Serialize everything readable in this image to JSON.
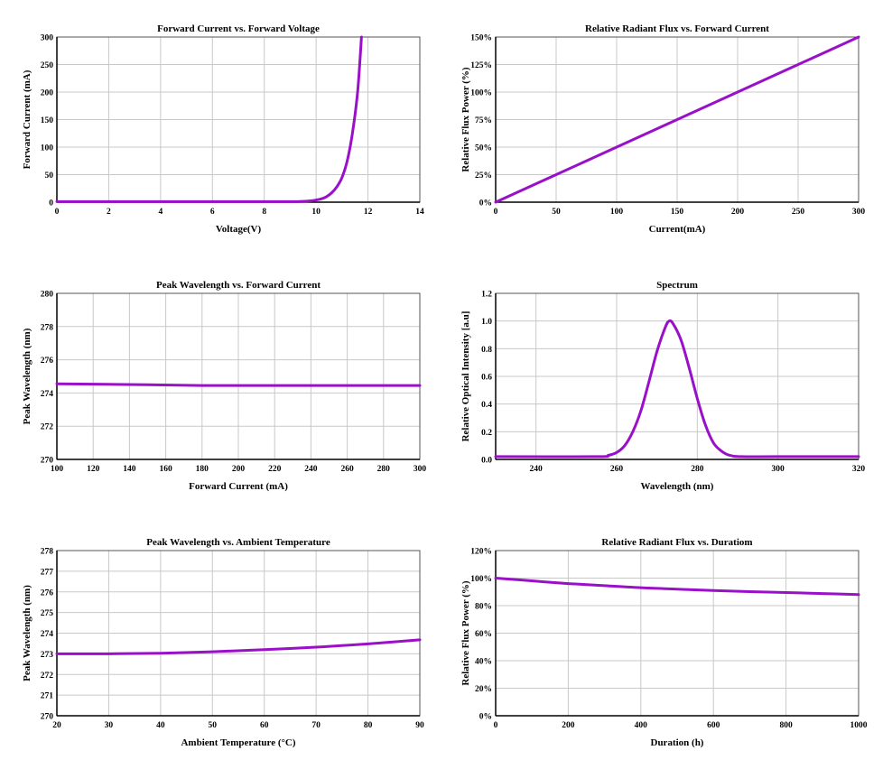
{
  "colors": {
    "series": "#9a10c8"
  },
  "chart_data": [
    {
      "type": "line",
      "title": "Forward Current vs. Forward Voltage",
      "xlabel": "Voltage(V)",
      "ylabel": "Forward Current (mA)",
      "xlim": [
        0,
        14
      ],
      "ylim": [
        0,
        300
      ],
      "xticks": [
        0,
        2,
        4,
        6,
        8,
        10,
        12,
        14
      ],
      "yticks": [
        0,
        50,
        100,
        150,
        200,
        250,
        300
      ],
      "xtick_labels": [
        "0",
        "2",
        "4",
        "6",
        "8",
        "10",
        "12",
        "14"
      ],
      "ytick_labels": [
        "0",
        "50",
        "100",
        "150",
        "200",
        "250",
        "300"
      ],
      "grid": true,
      "series": [
        {
          "x": [
            0,
            2,
            4,
            6,
            8,
            9,
            9.5,
            9.8,
            10,
            10.2,
            10.4,
            10.6,
            10.8,
            11,
            11.2,
            11.4,
            11.6,
            11.75
          ],
          "y": [
            1,
            1,
            1,
            1,
            1,
            1,
            1.5,
            2.5,
            4,
            6,
            10,
            17,
            28,
            45,
            75,
            125,
            200,
            300
          ]
        }
      ]
    },
    {
      "type": "line",
      "title": "Relative Radiant Flux vs. Forward Current",
      "xlabel": "Current(mA)",
      "ylabel": "Relative Flux Power (%)",
      "xlim": [
        0,
        300
      ],
      "ylim": [
        0,
        150
      ],
      "xticks": [
        0,
        50,
        100,
        150,
        200,
        250,
        300
      ],
      "yticks": [
        0,
        25,
        50,
        75,
        100,
        125,
        150
      ],
      "xtick_labels": [
        "0",
        "50",
        "100",
        "150",
        "200",
        "250",
        "300"
      ],
      "ytick_labels": [
        "0%",
        "25%",
        "50%",
        "75%",
        "100%",
        "125%",
        "150%"
      ],
      "grid": true,
      "series": [
        {
          "x": [
            0,
            50,
            100,
            150,
            200,
            250,
            300
          ],
          "y": [
            0,
            25,
            50,
            75,
            100,
            125,
            150
          ]
        }
      ]
    },
    {
      "type": "line",
      "title": "Peak Wavelength vs. Forward Current",
      "xlabel": "Forward Current (mA)",
      "ylabel": "Peak Wavelength (nm)",
      "xlim": [
        100,
        300
      ],
      "ylim": [
        270,
        280
      ],
      "xticks": [
        100,
        120,
        140,
        160,
        180,
        200,
        220,
        240,
        260,
        280,
        300
      ],
      "yticks": [
        270,
        272,
        274,
        276,
        278,
        280
      ],
      "xtick_labels": [
        "100",
        "120",
        "140",
        "160",
        "180",
        "200",
        "220",
        "240",
        "260",
        "280",
        "300"
      ],
      "ytick_labels": [
        "270",
        "272",
        "274",
        "276",
        "278",
        "280"
      ],
      "grid": true,
      "series": [
        {
          "x": [
            100,
            150,
            180,
            200,
            250,
            300
          ],
          "y": [
            274.55,
            274.5,
            274.45,
            274.45,
            274.45,
            274.45
          ]
        }
      ]
    },
    {
      "type": "line",
      "title": "Spectrum",
      "xlabel": "Wavelength (nm)",
      "ylabel": "Relative Optical Intensity [a.u]",
      "xlim": [
        230,
        320
      ],
      "ylim": [
        0,
        1.2
      ],
      "xticks": [
        240,
        260,
        280,
        300,
        320
      ],
      "yticks": [
        0,
        0.2,
        0.4,
        0.6,
        0.8,
        1.0,
        1.2
      ],
      "xtick_labels": [
        "240",
        "260",
        "280",
        "300",
        "320"
      ],
      "ytick_labels": [
        "0.0",
        "0.2",
        "0.4",
        "0.6",
        "0.8",
        "1.0",
        "1.2"
      ],
      "grid": true,
      "series": [
        {
          "x": [
            230,
            255,
            258,
            260,
            262,
            264,
            266,
            268,
            270,
            272,
            273,
            274,
            276,
            278,
            280,
            282,
            284,
            286,
            288,
            291,
            300,
            320
          ],
          "y": [
            0.02,
            0.02,
            0.03,
            0.05,
            0.1,
            0.2,
            0.35,
            0.56,
            0.78,
            0.95,
            1.0,
            0.98,
            0.86,
            0.66,
            0.44,
            0.25,
            0.12,
            0.06,
            0.03,
            0.02,
            0.02,
            0.02
          ]
        }
      ]
    },
    {
      "type": "line",
      "title": "Peak Wavelength vs. Ambient Temperature",
      "xlabel": "Ambient Temperature (°C)",
      "ylabel": "Peak Wavelength (nm)",
      "xlim": [
        20,
        90
      ],
      "ylim": [
        270,
        278
      ],
      "xticks": [
        20,
        30,
        40,
        50,
        60,
        70,
        80,
        90
      ],
      "yticks": [
        270,
        271,
        272,
        273,
        274,
        275,
        276,
        277,
        278
      ],
      "xtick_labels": [
        "20",
        "30",
        "40",
        "50",
        "60",
        "70",
        "80",
        "90"
      ],
      "ytick_labels": [
        "270",
        "271",
        "272",
        "273",
        "274",
        "275",
        "276",
        "277",
        "278"
      ],
      "grid": true,
      "series": [
        {
          "x": [
            20,
            30,
            40,
            50,
            60,
            70,
            80,
            90
          ],
          "y": [
            273.0,
            273.0,
            273.03,
            273.1,
            273.2,
            273.32,
            273.48,
            273.68
          ]
        }
      ]
    },
    {
      "type": "line",
      "title": "Relative Radiant Flux vs. Duratiom",
      "xlabel": "Duration (h)",
      "ylabel": "Relative Flux Power (%)",
      "xlim": [
        0,
        1000
      ],
      "ylim": [
        0,
        120
      ],
      "xticks": [
        0,
        200,
        400,
        600,
        800,
        1000
      ],
      "yticks": [
        0,
        20,
        40,
        60,
        80,
        100,
        120
      ],
      "xtick_labels": [
        "0",
        "200",
        "400",
        "600",
        "800",
        "1000"
      ],
      "ytick_labels": [
        "0%",
        "20%",
        "40%",
        "60%",
        "80%",
        "100%",
        "120%"
      ],
      "grid": true,
      "series": [
        {
          "x": [
            0,
            100,
            200,
            300,
            400,
            500,
            600,
            700,
            800,
            900,
            1000
          ],
          "y": [
            100,
            98,
            96,
            94.5,
            93,
            92,
            91,
            90.2,
            89.5,
            88.8,
            88
          ]
        }
      ]
    }
  ]
}
